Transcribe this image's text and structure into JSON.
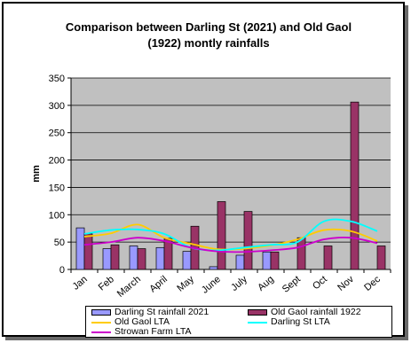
{
  "chart_data": {
    "type": "bar",
    "title": "Comparison between Darling St (2021) and Old Gaol (1922) montly rainfalls",
    "title_lines": [
      "Comparison between Darling St (2021) and Old Gaol",
      "(1922) montly rainfalls"
    ],
    "xlabel": "",
    "ylabel": "mm",
    "ylim": [
      0,
      350
    ],
    "yticks": [
      0,
      50,
      100,
      150,
      200,
      250,
      300,
      350
    ],
    "grid": true,
    "legend_position": "bottom",
    "categories": [
      "Jan",
      "Feb",
      "March",
      "April",
      "May",
      "June",
      "July",
      "Aug",
      "Sept",
      "Oct",
      "Nov",
      "Dec"
    ],
    "series": [
      {
        "name": "Darling St rainfall 2021",
        "kind": "bar",
        "color": "#9999ff",
        "values": [
          76,
          38,
          43,
          40,
          33,
          5,
          26,
          32,
          null,
          null,
          null,
          null
        ]
      },
      {
        "name": "Old Gaol rainfall 1922",
        "kind": "bar",
        "color": "#993366",
        "values": [
          65,
          45,
          38,
          57,
          79,
          124,
          106,
          32,
          58,
          43,
          306,
          43
        ]
      },
      {
        "name": "Old Gaol LTA",
        "kind": "line",
        "color": "#ffcc00",
        "values": [
          60,
          66,
          82,
          58,
          47,
          37,
          38,
          44,
          55,
          72,
          70,
          52
        ]
      },
      {
        "name": "Darling St LTA",
        "kind": "line",
        "color": "#00ffff",
        "values": [
          65,
          72,
          73,
          65,
          40,
          35,
          40,
          45,
          50,
          88,
          88,
          70
        ]
      },
      {
        "name": "Strowan Farm LTA",
        "kind": "line",
        "color": "#cc00cc",
        "values": [
          45,
          50,
          58,
          52,
          40,
          33,
          32,
          35,
          40,
          55,
          58,
          48
        ]
      }
    ],
    "plot_area_color": "#c0c0c0"
  }
}
